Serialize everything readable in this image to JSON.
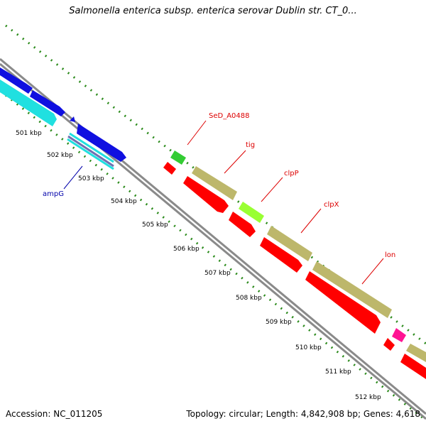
{
  "title": "Salmonella enterica subsp. enterica serovar Dublin str. CT_0...",
  "accession": "Accession: NC_011205",
  "summary": "Topology: circular; Length: 4,842,908 bp; Genes: 4,618",
  "ticks": [
    "501 kbp",
    "502 kbp",
    "503 kbp",
    "504 kbp",
    "505 kbp",
    "506 kbp",
    "507 kbp",
    "508 kbp",
    "509 kbp",
    "510 kbp",
    "511 kbp",
    "512 kbp"
  ],
  "genes": {
    "SeD_A0488": "SeD_A0488",
    "tig": "tig",
    "clpP": "clpP",
    "clpX": "clpX",
    "lon": "lon",
    "ampG": "ampG"
  },
  "colors": {
    "tick": "#2a8a1a",
    "backbone": "#8a8a8a",
    "cds_blue": "#1010e0",
    "cds_cyan": "#20e0e0",
    "cds_red": "#ff0000",
    "cds_khaki": "#bdb76b",
    "cds_green": "#33cc33",
    "cds_lime": "#99ff33",
    "cds_magenta": "#ff1493",
    "label_red": "#dd0000",
    "label_blue": "#0000aa"
  }
}
